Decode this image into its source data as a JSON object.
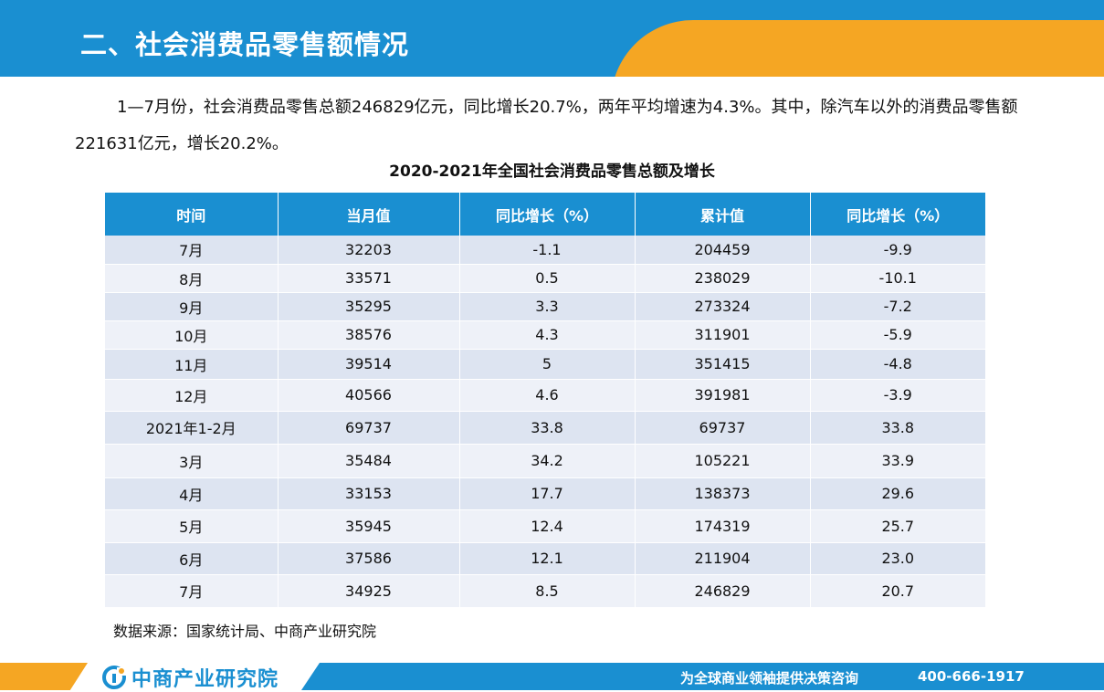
{
  "header": {
    "title": "二、社会消费品零售额情况"
  },
  "intro": {
    "text": "1—7月份，社会消费品零售总额246829亿元，同比增长20.7%，两年平均增速为4.3%。其中，除汽车以外的消费品零售额221631亿元，增长20.2%。"
  },
  "table": {
    "title": "2020-2021年全国社会消费品零售总额及增长",
    "headers": [
      "时间",
      "当月值",
      "同比增长（%）",
      "累计值",
      "同比增长（%）"
    ],
    "rows": [
      [
        "7月",
        "32203",
        "-1.1",
        "204459",
        "-9.9"
      ],
      [
        "8月",
        "33571",
        "0.5",
        "238029",
        "-10.1"
      ],
      [
        "9月",
        "35295",
        "3.3",
        "273324",
        "-7.2"
      ],
      [
        "10月",
        "38576",
        "4.3",
        "311901",
        "-5.9"
      ],
      [
        "11月",
        "39514",
        "5",
        "351415",
        "-4.8"
      ],
      [
        "12月",
        "40566",
        "4.6",
        "391981",
        "-3.9"
      ],
      [
        "2021年1-2月",
        "69737",
        "33.8",
        "69737",
        "33.8"
      ],
      [
        "3月",
        "35484",
        "34.2",
        "105221",
        "33.9"
      ],
      [
        "4月",
        "33153",
        "17.7",
        "138373",
        "29.6"
      ],
      [
        "5月",
        "35945",
        "12.4",
        "174319",
        "25.7"
      ],
      [
        "6月",
        "37586",
        "12.1",
        "211904",
        "23.0"
      ],
      [
        "7月",
        "34925",
        "8.5",
        "246829",
        "20.7"
      ]
    ]
  },
  "source": "数据来源：国家统计局、中商产业研究院",
  "footer": {
    "logo_text": "中商产业研究院",
    "slogan": "为全球商业领袖提供决策咨询",
    "phone": "400-666-1917"
  },
  "colors": {
    "primary": "#1a8fd1",
    "accent": "#f5a623",
    "row_odd": "#dde4f1",
    "row_even": "#eef1f8"
  }
}
